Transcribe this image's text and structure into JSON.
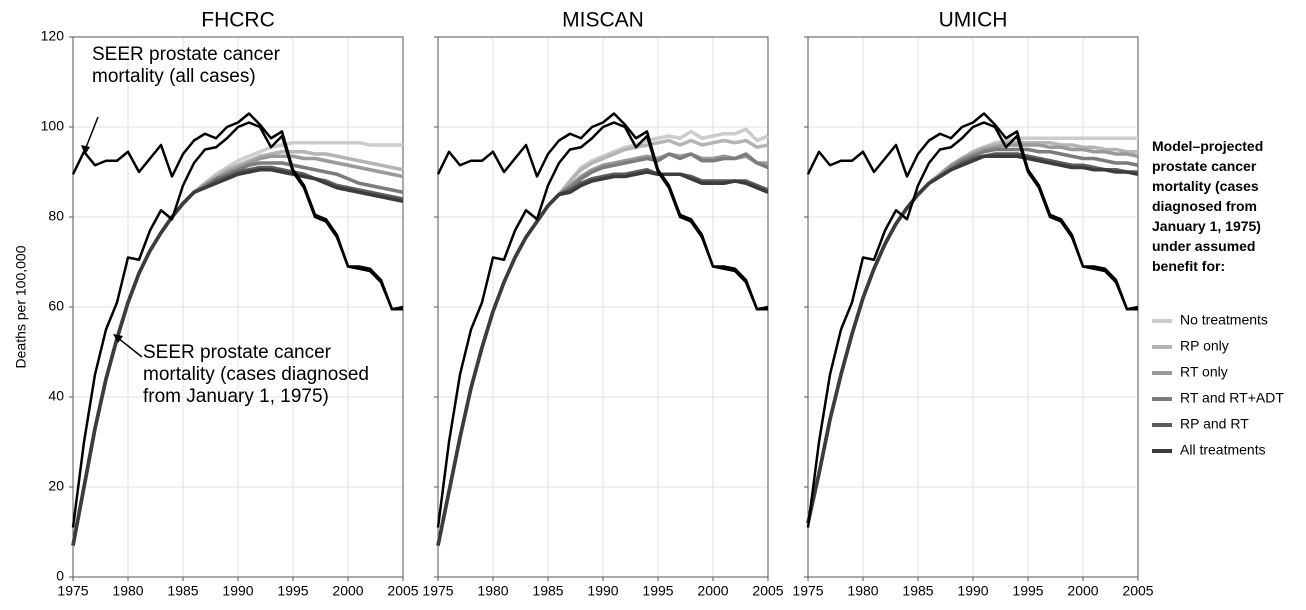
{
  "chart_data": [
    {
      "type": "line",
      "title": "FHCRC",
      "ylabel": "Deaths per 100,000",
      "legend_title": "Model–projected prostate cancer mortality (cases diagnosed from January 1, 1975) under assumed benefit for:",
      "annotations": [
        "SEER prostate cancer mortality (all cases)",
        "SEER prostate cancer mortality (cases diagnosed from January 1, 1975)"
      ],
      "x": [
        1975,
        1976,
        1977,
        1978,
        1979,
        1980,
        1981,
        1982,
        1983,
        1984,
        1985,
        1986,
        1987,
        1988,
        1989,
        1990,
        1991,
        1992,
        1993,
        1994,
        1995,
        1996,
        1997,
        1998,
        1999,
        2000,
        2001,
        2002,
        2003,
        2004,
        2005
      ],
      "xlim": [
        1975,
        2005
      ],
      "ylim": [
        0,
        120
      ],
      "xticks": [
        1975,
        1980,
        1985,
        1990,
        1995,
        2000,
        2005
      ],
      "yticks": [
        0,
        20,
        40,
        60,
        80,
        100,
        120
      ],
      "grid": true,
      "series": [
        {
          "name": "No treatments",
          "color": "#cccccc",
          "values": [
            7,
            20,
            33,
            44,
            53,
            61,
            67.5,
            72.5,
            76.5,
            80,
            83,
            85.5,
            87.5,
            89.5,
            91,
            92.5,
            93.5,
            94.5,
            95.5,
            96,
            96.5,
            96.5,
            96.5,
            96.5,
            96.5,
            96.5,
            96.5,
            96,
            96,
            96,
            96
          ]
        },
        {
          "name": "RP only",
          "color": "#b4b4b4",
          "values": [
            7,
            20,
            33,
            44,
            53,
            61,
            67.5,
            72.5,
            76.5,
            80,
            83,
            85.5,
            87.5,
            89,
            90.5,
            91.5,
            92.5,
            93.5,
            94,
            94.5,
            94.5,
            94.5,
            94,
            94,
            93.5,
            93,
            92.5,
            92,
            91.5,
            91,
            90.5
          ]
        },
        {
          "name": "RT only",
          "color": "#9a9a9a",
          "values": [
            7,
            20,
            33,
            44,
            53,
            61,
            67.5,
            72.5,
            76.5,
            80,
            83,
            85.5,
            87,
            88.5,
            90,
            91,
            92,
            93,
            93.5,
            93.5,
            93.5,
            93,
            93,
            92.5,
            92,
            91.5,
            91,
            90.5,
            90,
            89.5,
            89
          ]
        },
        {
          "name": "RT and RT+ADT",
          "color": "#7c7c7c",
          "values": [
            7,
            20,
            33,
            44,
            53,
            61,
            67.5,
            72.5,
            76.5,
            80,
            83,
            85.5,
            87,
            88.5,
            89.5,
            90.5,
            91.5,
            92,
            92,
            92,
            91.5,
            91,
            90.5,
            90,
            89.5,
            88.5,
            87.5,
            87,
            86.5,
            86,
            85.5
          ]
        },
        {
          "name": "RP and RT",
          "color": "#5c5c5c",
          "values": [
            7,
            20,
            33,
            44,
            53,
            61,
            67.5,
            72.5,
            76.5,
            80,
            83,
            85.5,
            86.5,
            88,
            89,
            90,
            90.5,
            91,
            91,
            90.5,
            90,
            89.5,
            88.5,
            88,
            87,
            86.5,
            86,
            85.5,
            85,
            84.5,
            84
          ]
        },
        {
          "name": "All treatments",
          "color": "#3c3c3c",
          "values": [
            7,
            20,
            33,
            44,
            53,
            61,
            67.5,
            72.5,
            76.5,
            80,
            83,
            85.5,
            86.5,
            87.5,
            88.5,
            89.5,
            90,
            90.5,
            90.5,
            90,
            89.5,
            89,
            88.5,
            87.5,
            86.5,
            86,
            85.5,
            85,
            84.5,
            84,
            83.5
          ]
        },
        {
          "color": "#000000",
          "values": [
            89.5,
            94.5,
            91.5,
            92.5,
            92.5,
            94.5,
            90,
            93,
            96,
            89,
            94,
            97,
            98.5,
            97.5,
            100,
            101,
            103,
            100.5,
            97.5,
            99,
            90.5,
            87,
            80.5,
            79.5,
            76,
            69,
            69,
            68.5,
            66,
            59.5,
            60
          ]
        },
        {
          "color": "#000000",
          "values": [
            11,
            30,
            45,
            55,
            61,
            71,
            70.5,
            77,
            81.5,
            79.5,
            87,
            92,
            95,
            95.5,
            97.5,
            100,
            101,
            100,
            95.5,
            98,
            90,
            86.5,
            80,
            79,
            75.5,
            69,
            68.5,
            68,
            65.5,
            59.5,
            59.5
          ]
        }
      ]
    },
    {
      "type": "line",
      "title": "MISCAN",
      "x": [
        1975,
        1976,
        1977,
        1978,
        1979,
        1980,
        1981,
        1982,
        1983,
        1984,
        1985,
        1986,
        1987,
        1988,
        1989,
        1990,
        1991,
        1992,
        1993,
        1994,
        1995,
        1996,
        1997,
        1998,
        1999,
        2000,
        2001,
        2002,
        2003,
        2004,
        2005
      ],
      "xlim": [
        1975,
        2005
      ],
      "ylim": [
        0,
        120
      ],
      "xticks": [
        1975,
        1980,
        1985,
        1990,
        1995,
        2000,
        2005
      ],
      "yticks": [
        0,
        20,
        40,
        60,
        80,
        100,
        120
      ],
      "grid": true,
      "series": [
        {
          "color": "#cccccc",
          "values": [
            7,
            19,
            31,
            42,
            51,
            59,
            65.5,
            71,
            75.5,
            79,
            82.5,
            85,
            88,
            91,
            92.5,
            93.5,
            94.5,
            95.5,
            96,
            97,
            97.5,
            98,
            97.5,
            99,
            97.5,
            98,
            98.5,
            98.5,
            99.5,
            97,
            98
          ]
        },
        {
          "color": "#b4b4b4",
          "values": [
            7,
            19,
            31,
            42,
            51,
            59,
            65.5,
            71,
            75.5,
            79,
            82.5,
            85,
            88,
            90.5,
            92,
            93,
            94,
            95,
            95.5,
            96,
            96.5,
            97,
            96,
            97,
            96,
            96.5,
            97,
            96.5,
            97,
            95.5,
            96
          ]
        },
        {
          "color": "#9a9a9a",
          "values": [
            7,
            19,
            31,
            42,
            51,
            59,
            65.5,
            71,
            75.5,
            79,
            82.5,
            85,
            87,
            89,
            90.5,
            91.5,
            92,
            92.5,
            93,
            93.5,
            93,
            94,
            93.5,
            94,
            93,
            93,
            93.5,
            93,
            93.5,
            92,
            92
          ]
        },
        {
          "color": "#7c7c7c",
          "values": [
            7,
            19,
            31,
            42,
            51,
            59,
            65.5,
            71,
            75.5,
            79,
            82.5,
            85,
            86.5,
            88.5,
            90,
            91,
            91.5,
            92,
            92.5,
            93,
            92.5,
            94,
            93,
            94,
            92.5,
            92.5,
            93,
            93,
            94,
            92,
            91
          ]
        },
        {
          "color": "#5c5c5c",
          "values": [
            7,
            19,
            31,
            42,
            51,
            59,
            65.5,
            71,
            75.5,
            79,
            82.5,
            85,
            86,
            87.5,
            88.5,
            89,
            89.5,
            89.5,
            90,
            90.5,
            89.5,
            89.5,
            89.5,
            89,
            88,
            88,
            88,
            88,
            88,
            87,
            86
          ]
        },
        {
          "color": "#3c3c3c",
          "values": [
            7,
            19,
            31,
            42,
            51,
            59,
            65.5,
            71,
            75.5,
            79,
            82.5,
            85,
            85.5,
            87,
            88,
            88.5,
            89,
            89,
            89.5,
            90,
            89.5,
            89.5,
            89.5,
            88.5,
            87.5,
            87.5,
            87.5,
            88,
            87.5,
            86.5,
            85.5
          ]
        },
        {
          "color": "#000000",
          "values": [
            89.5,
            94.5,
            91.5,
            92.5,
            92.5,
            94.5,
            90,
            93,
            96,
            89,
            94,
            97,
            98.5,
            97.5,
            100,
            101,
            103,
            100.5,
            97.5,
            99,
            90.5,
            87,
            80.5,
            79.5,
            76,
            69,
            69,
            68.5,
            66,
            59.5,
            60
          ]
        },
        {
          "color": "#000000",
          "values": [
            11,
            30,
            45,
            55,
            61,
            71,
            70.5,
            77,
            81.5,
            79.5,
            87,
            92,
            95,
            95.5,
            97.5,
            100,
            101,
            100,
            95.5,
            98,
            90,
            86.5,
            80,
            79,
            75.5,
            69,
            68.5,
            68,
            65.5,
            59.5,
            59.5
          ]
        }
      ]
    },
    {
      "type": "line",
      "title": "UMICH",
      "x": [
        1975,
        1976,
        1977,
        1978,
        1979,
        1980,
        1981,
        1982,
        1983,
        1984,
        1985,
        1986,
        1987,
        1988,
        1989,
        1990,
        1991,
        1992,
        1993,
        1994,
        1995,
        1996,
        1997,
        1998,
        1999,
        2000,
        2001,
        2002,
        2003,
        2004,
        2005
      ],
      "xlim": [
        1975,
        2005
      ],
      "ylim": [
        0,
        120
      ],
      "xticks": [
        1975,
        1980,
        1985,
        1990,
        1995,
        2000,
        2005
      ],
      "yticks": [
        0,
        20,
        40,
        60,
        80,
        100,
        120
      ],
      "grid": true,
      "series": [
        {
          "color": "#cccccc",
          "values": [
            12,
            23,
            35,
            45,
            54,
            62,
            68.5,
            74,
            78.5,
            82,
            85,
            87.5,
            89.5,
            91.5,
            93,
            94.5,
            95.5,
            96.5,
            97,
            97.5,
            97.5,
            97.5,
            97.5,
            97.5,
            97.5,
            97.5,
            97.5,
            97.5,
            97.5,
            97.5,
            97.5
          ]
        },
        {
          "color": "#b4b4b4",
          "values": [
            12,
            23,
            35,
            45,
            54,
            62,
            68.5,
            74,
            78.5,
            82,
            85,
            87.5,
            89.5,
            91.5,
            93,
            94.5,
            95.5,
            96,
            96.5,
            96.5,
            96.5,
            96.5,
            96.5,
            96,
            96,
            95.5,
            95.5,
            95,
            95,
            94.5,
            94.5
          ]
        },
        {
          "color": "#9a9a9a",
          "values": [
            12,
            23,
            35,
            45,
            54,
            62,
            68.5,
            74,
            78.5,
            82,
            85,
            87.5,
            89.5,
            91.5,
            93,
            94,
            95,
            95.5,
            96,
            96,
            96,
            96,
            95.5,
            95.5,
            95,
            95,
            94.5,
            94.5,
            94,
            94,
            93.5
          ]
        },
        {
          "color": "#7c7c7c",
          "values": [
            12,
            23,
            35,
            45,
            54,
            62,
            68.5,
            74,
            78.5,
            82,
            85,
            87.5,
            89,
            91,
            92.5,
            93.5,
            94.5,
            95,
            95,
            95,
            95,
            94.5,
            94.5,
            94,
            93.5,
            93,
            93,
            92.5,
            92,
            92,
            91.5
          ]
        },
        {
          "color": "#5c5c5c",
          "values": [
            12,
            23,
            35,
            45,
            54,
            62,
            68.5,
            74,
            78.5,
            82,
            85,
            87.5,
            89,
            90.5,
            92,
            93,
            93.5,
            94,
            94,
            94,
            93.5,
            93,
            92.5,
            92,
            91.5,
            91.5,
            91,
            90.5,
            90.5,
            90,
            90
          ]
        },
        {
          "color": "#3c3c3c",
          "values": [
            12,
            23,
            35,
            45,
            54,
            62,
            68.5,
            74,
            78.5,
            82,
            85,
            87.5,
            89,
            90.5,
            91.5,
            92.5,
            93.5,
            93.5,
            93.5,
            93.5,
            93,
            92.5,
            92,
            91.5,
            91,
            91,
            90.5,
            90.5,
            90,
            90,
            89.5
          ]
        },
        {
          "color": "#000000",
          "values": [
            89.5,
            94.5,
            91.5,
            92.5,
            92.5,
            94.5,
            90,
            93,
            96,
            89,
            94,
            97,
            98.5,
            97.5,
            100,
            101,
            103,
            100.5,
            97.5,
            99,
            90.5,
            87,
            80.5,
            79.5,
            76,
            69,
            69,
            68.5,
            66,
            59.5,
            60
          ]
        },
        {
          "color": "#000000",
          "values": [
            11,
            30,
            45,
            55,
            61,
            71,
            70.5,
            77,
            81.5,
            79.5,
            87,
            92,
            95,
            95.5,
            97.5,
            100,
            101,
            100,
            95.5,
            98,
            90,
            86.5,
            80,
            79,
            75.5,
            69,
            68.5,
            68,
            65.5,
            59.5,
            59.5
          ]
        }
      ]
    }
  ]
}
